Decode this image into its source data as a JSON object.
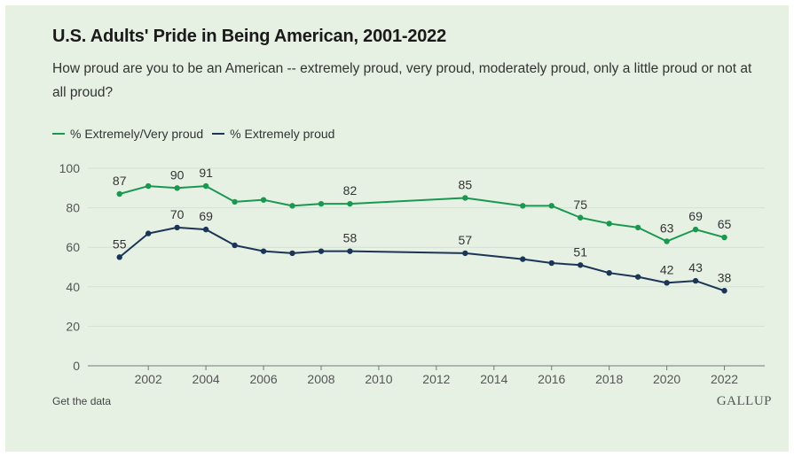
{
  "header": {
    "title": "U.S. Adults' Pride in Being American, 2001-2022",
    "subtitle": "How proud are you to be an American -- extremely proud, very proud, moderately proud, only a little proud or not at all proud?"
  },
  "footer": {
    "get_data_label": "Get the data",
    "logo_text": "GALLUP"
  },
  "colors": {
    "background": "#e6f1e4",
    "series_green": "#1a9850",
    "series_navy": "#1b3556",
    "grid": "#d4dfd2"
  },
  "chart_data": {
    "type": "line",
    "title": "U.S. Adults' Pride in Being American, 2001-2022",
    "xlabel": "",
    "ylabel": "",
    "ylim": [
      0,
      100
    ],
    "yticks": [
      0,
      20,
      40,
      60,
      80,
      100
    ],
    "xlim": [
      1999.9,
      2023.4
    ],
    "xticks": [
      2002,
      2004,
      2006,
      2008,
      2010,
      2012,
      2014,
      2016,
      2018,
      2020,
      2022
    ],
    "grid": true,
    "legend_position": "top-left",
    "series": [
      {
        "name": "% Extremely/Very proud",
        "color": "#1a9850",
        "x": [
          2001,
          2002,
          2003,
          2004,
          2005,
          2006,
          2007,
          2008,
          2009,
          2013,
          2015,
          2016,
          2017,
          2018,
          2019,
          2020,
          2021,
          2022
        ],
        "values": [
          87,
          91,
          90,
          91,
          83,
          84,
          81,
          82,
          82,
          85,
          81,
          81,
          75,
          72,
          70,
          63,
          69,
          65
        ],
        "labeled_x": [
          2001,
          2003,
          2004,
          2009,
          2013,
          2017,
          2020,
          2021,
          2022
        ]
      },
      {
        "name": "% Extremely proud",
        "color": "#1b3556",
        "x": [
          2001,
          2002,
          2003,
          2004,
          2005,
          2006,
          2007,
          2008,
          2009,
          2013,
          2015,
          2016,
          2017,
          2018,
          2019,
          2020,
          2021,
          2022
        ],
        "values": [
          55,
          67,
          70,
          69,
          61,
          58,
          57,
          58,
          58,
          57,
          54,
          52,
          51,
          47,
          45,
          42,
          43,
          38
        ],
        "labeled_x": [
          2001,
          2003,
          2004,
          2009,
          2013,
          2017,
          2020,
          2021,
          2022
        ]
      }
    ]
  }
}
